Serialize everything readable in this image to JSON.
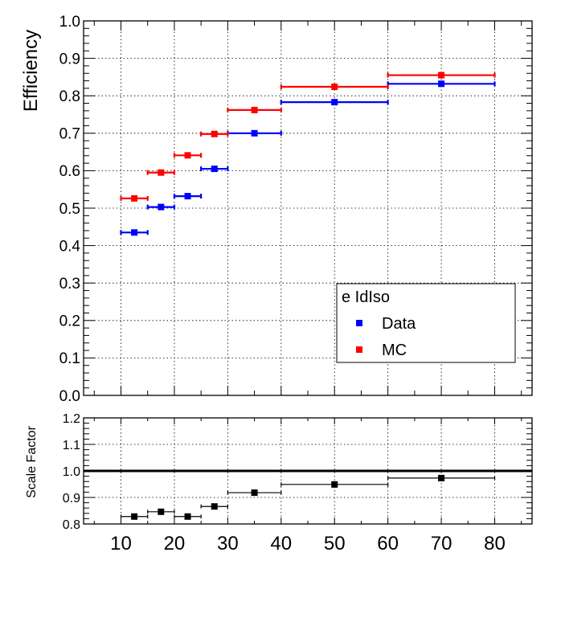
{
  "chart_data": [
    {
      "type": "scatter",
      "title": "",
      "ylabel": "Efficiency",
      "xlabel": "",
      "xlim": [
        3,
        87
      ],
      "ylim": [
        0.0,
        1.0
      ],
      "grid": true,
      "yticks": [
        "0.0",
        "0.1",
        "0.2",
        "0.3",
        "0.4",
        "0.5",
        "0.6",
        "0.7",
        "0.8",
        "0.9",
        "1.0"
      ],
      "legend": {
        "title": "e IdIso",
        "placement": "lower-right",
        "entries": [
          "Data",
          "MC"
        ]
      },
      "series": [
        {
          "name": "Data",
          "color": "#0000ff",
          "points": [
            {
              "x": 12.5,
              "xlow": 10,
              "xhigh": 15,
              "y": 0.435
            },
            {
              "x": 17.5,
              "xlow": 15,
              "xhigh": 20,
              "y": 0.503
            },
            {
              "x": 22.5,
              "xlow": 20,
              "xhigh": 25,
              "y": 0.532
            },
            {
              "x": 27.5,
              "xlow": 25,
              "xhigh": 30,
              "y": 0.605
            },
            {
              "x": 35,
              "xlow": 30,
              "xhigh": 40,
              "y": 0.7
            },
            {
              "x": 50,
              "xlow": 40,
              "xhigh": 60,
              "y": 0.783
            },
            {
              "x": 70,
              "xlow": 60,
              "xhigh": 80,
              "y": 0.832
            }
          ]
        },
        {
          "name": "MC",
          "color": "#ff0000",
          "points": [
            {
              "x": 12.5,
              "xlow": 10,
              "xhigh": 15,
              "y": 0.526
            },
            {
              "x": 17.5,
              "xlow": 15,
              "xhigh": 20,
              "y": 0.595
            },
            {
              "x": 22.5,
              "xlow": 20,
              "xhigh": 25,
              "y": 0.641
            },
            {
              "x": 27.5,
              "xlow": 25,
              "xhigh": 30,
              "y": 0.698
            },
            {
              "x": 35,
              "xlow": 30,
              "xhigh": 40,
              "y": 0.762
            },
            {
              "x": 50,
              "xlow": 40,
              "xhigh": 60,
              "y": 0.824
            },
            {
              "x": 70,
              "xlow": 60,
              "xhigh": 80,
              "y": 0.855
            }
          ]
        }
      ]
    },
    {
      "type": "scatter",
      "title": "",
      "ylabel": "Scale Factor",
      "xlabel": "",
      "xlim": [
        3,
        87
      ],
      "ylim": [
        0.8,
        1.2
      ],
      "grid": true,
      "yticks": [
        "0.8",
        "0.9",
        "1.0",
        "1.1",
        "1.2"
      ],
      "xticks": [
        "10",
        "20",
        "30",
        "40",
        "50",
        "60",
        "70",
        "80"
      ],
      "reference_line": 1.0,
      "series": [
        {
          "name": "",
          "color": "#000000",
          "points": [
            {
              "x": 12.5,
              "xlow": 10,
              "xhigh": 15,
              "y": 0.828
            },
            {
              "x": 17.5,
              "xlow": 15,
              "xhigh": 20,
              "y": 0.846
            },
            {
              "x": 22.5,
              "xlow": 20,
              "xhigh": 25,
              "y": 0.828
            },
            {
              "x": 27.5,
              "xlow": 25,
              "xhigh": 30,
              "y": 0.866
            },
            {
              "x": 35,
              "xlow": 30,
              "xhigh": 40,
              "y": 0.918
            },
            {
              "x": 50,
              "xlow": 40,
              "xhigh": 60,
              "y": 0.949
            },
            {
              "x": 70,
              "xlow": 60,
              "xhigh": 80,
              "y": 0.973
            }
          ]
        }
      ]
    }
  ]
}
